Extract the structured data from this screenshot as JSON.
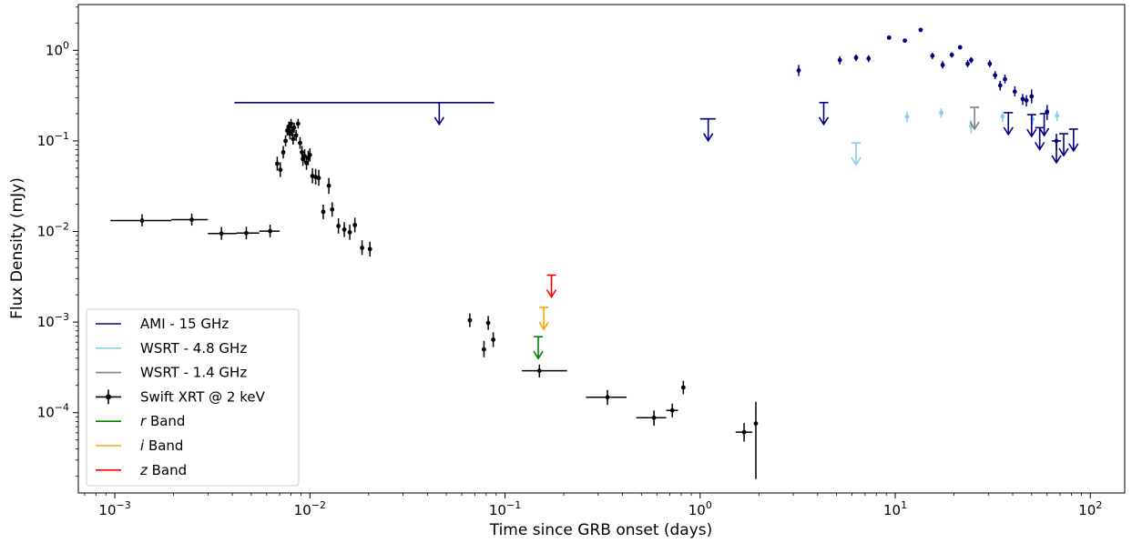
{
  "chart_data": {
    "type": "scatter",
    "xlabel": "Time since GRB onset (days)",
    "ylabel": "Flux Density (mJy)",
    "xscale": "log",
    "yscale": "log",
    "xlim": [
      0.00065,
      150
    ],
    "ylim": [
      1.3e-05,
      3.2
    ],
    "x_ticks": [
      {
        "value": 0.001,
        "base": "10",
        "exp": "−3"
      },
      {
        "value": 0.01,
        "base": "10",
        "exp": "−2"
      },
      {
        "value": 0.1,
        "base": "10",
        "exp": "−1"
      },
      {
        "value": 1,
        "base": "10",
        "exp": "0"
      },
      {
        "value": 10,
        "base": "10",
        "exp": "1"
      },
      {
        "value": 100,
        "base": "10",
        "exp": "2"
      }
    ],
    "y_ticks": [
      {
        "value": 0.0001,
        "base": "10",
        "exp": "−4"
      },
      {
        "value": 0.001,
        "base": "10",
        "exp": "−3"
      },
      {
        "value": 0.01,
        "base": "10",
        "exp": "−2"
      },
      {
        "value": 0.1,
        "base": "10",
        "exp": "−1"
      },
      {
        "value": 1,
        "base": "10",
        "exp": "0"
      }
    ],
    "legend_position": "lower-left",
    "legend": [
      {
        "label": "AMI - 15 GHz",
        "color": "#000080",
        "style": "line"
      },
      {
        "label": "WSRT - 4.8 GHz",
        "color": "#87ceeb",
        "style": "line"
      },
      {
        "label": "WSRT - 1.4 GHz",
        "color": "#808080",
        "style": "line"
      },
      {
        "label": "Swift XRT @ 2 keV",
        "color": "#000000",
        "style": "errorbar"
      },
      {
        "label": " Band",
        "italic": "r",
        "color": "#008000",
        "style": "line"
      },
      {
        "label": " Band",
        "italic": "i",
        "color": "#ffa500",
        "style": "line"
      },
      {
        "label": " Band",
        "italic": "z",
        "color": "#ff0000",
        "style": "line"
      }
    ],
    "series": [
      {
        "name": "Swift XRT @ 2 keV",
        "color": "#000000",
        "points": [
          {
            "x": 0.00138,
            "y": 0.0132,
            "xlo": 0.00095,
            "xhi": 0.00195,
            "ylo": 0.0114,
            "yhi": 0.0155
          },
          {
            "x": 0.00248,
            "y": 0.0135,
            "xlo": 0.00195,
            "xhi": 0.003,
            "ylo": 0.0116,
            "yhi": 0.0158
          },
          {
            "x": 0.00352,
            "y": 0.0095,
            "xlo": 0.003,
            "xhi": 0.0042,
            "ylo": 0.0081,
            "yhi": 0.0112
          },
          {
            "x": 0.00472,
            "y": 0.0096,
            "xlo": 0.0042,
            "xhi": 0.0055,
            "ylo": 0.0082,
            "yhi": 0.0113
          },
          {
            "x": 0.00625,
            "y": 0.0101,
            "xlo": 0.0055,
            "xhi": 0.007,
            "ylo": 0.0086,
            "yhi": 0.0119
          },
          {
            "x": 0.0068,
            "y": 0.056,
            "ylo": 0.047,
            "yhi": 0.067
          },
          {
            "x": 0.00705,
            "y": 0.048,
            "ylo": 0.04,
            "yhi": 0.058
          },
          {
            "x": 0.0073,
            "y": 0.075,
            "ylo": 0.064,
            "yhi": 0.088
          },
          {
            "x": 0.0075,
            "y": 0.1,
            "ylo": 0.087,
            "yhi": 0.115
          },
          {
            "x": 0.00765,
            "y": 0.13,
            "ylo": 0.114,
            "yhi": 0.148
          },
          {
            "x": 0.0078,
            "y": 0.145,
            "ylo": 0.128,
            "yhi": 0.163
          },
          {
            "x": 0.0079,
            "y": 0.12,
            "ylo": 0.104,
            "yhi": 0.138
          },
          {
            "x": 0.008,
            "y": 0.155,
            "ylo": 0.137,
            "yhi": 0.175
          },
          {
            "x": 0.0081,
            "y": 0.128,
            "ylo": 0.112,
            "yhi": 0.146
          },
          {
            "x": 0.0082,
            "y": 0.105,
            "ylo": 0.091,
            "yhi": 0.121
          },
          {
            "x": 0.0083,
            "y": 0.14,
            "ylo": 0.123,
            "yhi": 0.159
          },
          {
            "x": 0.0085,
            "y": 0.115,
            "ylo": 0.1,
            "yhi": 0.132
          },
          {
            "x": 0.0087,
            "y": 0.155,
            "ylo": 0.137,
            "yhi": 0.175
          },
          {
            "x": 0.0089,
            "y": 0.095,
            "ylo": 0.082,
            "yhi": 0.11
          },
          {
            "x": 0.0091,
            "y": 0.075,
            "ylo": 0.064,
            "yhi": 0.088
          },
          {
            "x": 0.0092,
            "y": 0.063,
            "ylo": 0.053,
            "yhi": 0.075
          },
          {
            "x": 0.0094,
            "y": 0.068,
            "ylo": 0.057,
            "yhi": 0.081
          },
          {
            "x": 0.0096,
            "y": 0.057,
            "ylo": 0.048,
            "yhi": 0.068
          },
          {
            "x": 0.0098,
            "y": 0.065,
            "ylo": 0.054,
            "yhi": 0.078
          },
          {
            "x": 0.01,
            "y": 0.07,
            "ylo": 0.059,
            "yhi": 0.083
          },
          {
            "x": 0.0103,
            "y": 0.041,
            "ylo": 0.034,
            "yhi": 0.05
          },
          {
            "x": 0.0107,
            "y": 0.04,
            "ylo": 0.033,
            "yhi": 0.049
          },
          {
            "x": 0.0111,
            "y": 0.039,
            "ylo": 0.032,
            "yhi": 0.048
          },
          {
            "x": 0.0117,
            "y": 0.0165,
            "ylo": 0.0137,
            "yhi": 0.0198
          },
          {
            "x": 0.0125,
            "y": 0.032,
            "ylo": 0.026,
            "yhi": 0.039
          },
          {
            "x": 0.013,
            "y": 0.0175,
            "ylo": 0.0146,
            "yhi": 0.021
          },
          {
            "x": 0.014,
            "y": 0.0115,
            "ylo": 0.0095,
            "yhi": 0.014
          },
          {
            "x": 0.015,
            "y": 0.0105,
            "ylo": 0.0087,
            "yhi": 0.0127
          },
          {
            "x": 0.016,
            "y": 0.0098,
            "ylo": 0.0081,
            "yhi": 0.0119
          },
          {
            "x": 0.017,
            "y": 0.0118,
            "ylo": 0.0098,
            "yhi": 0.0142
          },
          {
            "x": 0.0185,
            "y": 0.0066,
            "ylo": 0.0055,
            "yhi": 0.008
          },
          {
            "x": 0.0203,
            "y": 0.0064,
            "ylo": 0.0053,
            "yhi": 0.0077
          },
          {
            "x": 0.066,
            "y": 0.00105,
            "ylo": 0.00088,
            "yhi": 0.00125
          },
          {
            "x": 0.078,
            "y": 0.0005,
            "ylo": 0.00041,
            "yhi": 0.00062
          },
          {
            "x": 0.082,
            "y": 0.00098,
            "ylo": 0.00082,
            "yhi": 0.00117
          },
          {
            "x": 0.087,
            "y": 0.00064,
            "ylo": 0.00053,
            "yhi": 0.00077
          },
          {
            "x": 0.15,
            "y": 0.00029,
            "xlo": 0.122,
            "xhi": 0.208,
            "ylo": 0.000245,
            "yhi": 0.00034
          },
          {
            "x": 0.335,
            "y": 0.000148,
            "xlo": 0.26,
            "xhi": 0.42,
            "ylo": 0.000122,
            "yhi": 0.000178
          },
          {
            "x": 0.58,
            "y": 8.8e-05,
            "xlo": 0.47,
            "xhi": 0.67,
            "ylo": 7.2e-05,
            "yhi": 0.000106
          },
          {
            "x": 0.72,
            "y": 0.000106,
            "xlo": 0.67,
            "xhi": 0.77,
            "ylo": 8.9e-05,
            "yhi": 0.000126
          },
          {
            "x": 0.82,
            "y": 0.00019,
            "ylo": 0.00016,
            "yhi": 0.000225
          },
          {
            "x": 1.68,
            "y": 6.1e-05,
            "xlo": 1.52,
            "xhi": 1.85,
            "ylo": 4.8e-05,
            "yhi": 7.7e-05
          },
          {
            "x": 1.93,
            "y": 7.6e-05,
            "ylo": 1.85e-05,
            "yhi": 0.000132
          }
        ]
      },
      {
        "name": "AMI - 15 GHz",
        "color": "#000080",
        "points": [
          {
            "x": 3.2,
            "y": 0.6,
            "ylo": 0.52,
            "yhi": 0.69
          },
          {
            "x": 5.2,
            "y": 0.78,
            "ylo": 0.7,
            "yhi": 0.86
          },
          {
            "x": 6.3,
            "y": 0.83,
            "ylo": 0.76,
            "yhi": 0.9
          },
          {
            "x": 7.3,
            "y": 0.81,
            "ylo": 0.74,
            "yhi": 0.88
          },
          {
            "x": 9.3,
            "y": 1.38,
            "ylo": 1.32,
            "yhi": 1.44
          },
          {
            "x": 11.2,
            "y": 1.28,
            "ylo": 1.22,
            "yhi": 1.34
          },
          {
            "x": 13.5,
            "y": 1.68,
            "ylo": 1.62,
            "yhi": 1.74
          },
          {
            "x": 15.5,
            "y": 0.87,
            "ylo": 0.8,
            "yhi": 0.94
          },
          {
            "x": 17.5,
            "y": 0.69,
            "ylo": 0.63,
            "yhi": 0.76
          },
          {
            "x": 19.5,
            "y": 0.89,
            "ylo": 0.83,
            "yhi": 0.95
          },
          {
            "x": 21.5,
            "y": 1.08,
            "ylo": 1.02,
            "yhi": 1.14
          },
          {
            "x": 23.5,
            "y": 0.71,
            "ylo": 0.65,
            "yhi": 0.78
          },
          {
            "x": 24.5,
            "y": 0.78,
            "ylo": 0.72,
            "yhi": 0.84
          },
          {
            "x": 30.5,
            "y": 0.71,
            "ylo": 0.65,
            "yhi": 0.78
          },
          {
            "x": 32.5,
            "y": 0.53,
            "ylo": 0.48,
            "yhi": 0.59
          },
          {
            "x": 34.5,
            "y": 0.41,
            "ylo": 0.36,
            "yhi": 0.46
          },
          {
            "x": 36.5,
            "y": 0.48,
            "ylo": 0.43,
            "yhi": 0.54
          },
          {
            "x": 41.0,
            "y": 0.35,
            "ylo": 0.31,
            "yhi": 0.4
          },
          {
            "x": 45.0,
            "y": 0.29,
            "ylo": 0.25,
            "yhi": 0.33
          },
          {
            "x": 47.0,
            "y": 0.28,
            "ylo": 0.24,
            "yhi": 0.32
          },
          {
            "x": 50.0,
            "y": 0.31,
            "ylo": 0.26,
            "yhi": 0.37
          },
          {
            "x": 60.0,
            "y": 0.21,
            "ylo": 0.17,
            "yhi": 0.25
          },
          {
            "x": 67.0,
            "y": 0.1,
            "ylo": 0.08,
            "yhi": 0.12
          }
        ]
      },
      {
        "name": "WSRT - 4.8 GHz",
        "color": "#87ceeb",
        "points": [
          {
            "x": 11.5,
            "y": 0.185,
            "ylo": 0.16,
            "yhi": 0.21
          },
          {
            "x": 17.2,
            "y": 0.205,
            "ylo": 0.18,
            "yhi": 0.23
          },
          {
            "x": 24.5,
            "y": 0.145,
            "ylo": 0.12,
            "yhi": 0.17
          },
          {
            "x": 35.5,
            "y": 0.185,
            "ylo": 0.16,
            "yhi": 0.21
          },
          {
            "x": 50.5,
            "y": 0.175,
            "ylo": 0.15,
            "yhi": 0.2
          },
          {
            "x": 67.5,
            "y": 0.19,
            "ylo": 0.165,
            "yhi": 0.215
          }
        ]
      }
    ],
    "upper_limits": [
      {
        "series": "AMI - 15 GHz",
        "x": 0.046,
        "xlo": 0.0041,
        "xhi": 0.088,
        "y": 0.265,
        "color": "#000080"
      },
      {
        "series": "AMI - 15 GHz",
        "x": 1.1,
        "xlo": 1.0,
        "xhi": 1.2,
        "y": 0.175,
        "color": "#000080"
      },
      {
        "series": "AMI - 15 GHz",
        "x": 4.3,
        "y": 0.265,
        "color": "#000080"
      },
      {
        "series": "AMI - 15 GHz",
        "x": 38,
        "y": 0.205,
        "color": "#000080"
      },
      {
        "series": "AMI - 15 GHz",
        "x": 50,
        "y": 0.195,
        "color": "#000080"
      },
      {
        "series": "AMI - 15 GHz",
        "x": 55,
        "y": 0.14,
        "color": "#000080"
      },
      {
        "series": "AMI - 15 GHz",
        "x": 58,
        "y": 0.2,
        "color": "#000080"
      },
      {
        "series": "AMI - 15 GHz",
        "x": 67,
        "y": 0.1,
        "color": "#000080"
      },
      {
        "series": "AMI - 15 GHz",
        "x": 73,
        "y": 0.12,
        "color": "#000080"
      },
      {
        "series": "AMI - 15 GHz",
        "x": 82,
        "y": 0.135,
        "color": "#000080"
      },
      {
        "series": "WSRT - 4.8 GHz",
        "x": 6.3,
        "y": 0.095,
        "color": "#87ceeb"
      },
      {
        "series": "WSRT - 1.4 GHz",
        "x": 25.5,
        "y": 0.235,
        "color": "#808080"
      },
      {
        "series": "r Band",
        "x": 0.148,
        "y": 0.00069,
        "color": "#008000"
      },
      {
        "series": "i Band",
        "x": 0.158,
        "y": 0.00145,
        "color": "#ffa500"
      },
      {
        "series": "z Band",
        "x": 0.173,
        "y": 0.0033,
        "color": "#ff0000"
      }
    ]
  }
}
